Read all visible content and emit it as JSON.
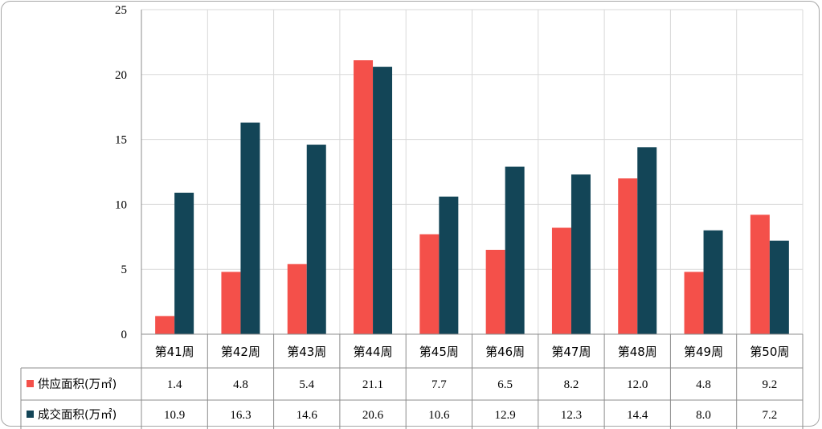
{
  "chart_data": {
    "type": "bar",
    "categories": [
      "第41周",
      "第42周",
      "第43周",
      "第44周",
      "第45周",
      "第46周",
      "第47周",
      "第48周",
      "第49周",
      "第50周"
    ],
    "series": [
      {
        "name": "供应面积(万㎡)",
        "color": "#f4504a",
        "values": [
          1.4,
          4.8,
          5.4,
          21.1,
          7.7,
          6.5,
          8.2,
          12.0,
          4.8,
          9.2
        ],
        "labels": [
          "1.4",
          "4.8",
          "5.4",
          "21.1",
          "7.7",
          "6.5",
          "8.2",
          "12.0",
          "4.8",
          "9.2"
        ]
      },
      {
        "name": "成交面积(万㎡)",
        "color": "#134557",
        "values": [
          10.9,
          16.3,
          14.6,
          20.6,
          10.6,
          12.9,
          12.3,
          14.4,
          8.0,
          7.2
        ],
        "labels": [
          "10.9",
          "16.3",
          "14.6",
          "20.6",
          "10.6",
          "12.9",
          "12.3",
          "14.4",
          "8.0",
          "7.2"
        ]
      }
    ],
    "ylim": [
      0,
      25
    ],
    "yticks": [
      "0",
      "5",
      "10",
      "15",
      "20",
      "25"
    ],
    "grid": true,
    "legend": "data-table-rows",
    "data_table": true
  }
}
